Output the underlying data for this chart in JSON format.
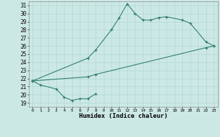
{
  "bg_color": "#cce8e5",
  "grid_color": "#b0d8d4",
  "line_color": "#2e7d6e",
  "xlabel": "Humidex (Indice chaleur)",
  "xlim": [
    -0.5,
    23.5
  ],
  "ylim": [
    18.5,
    31.5
  ],
  "xticks": [
    0,
    1,
    2,
    3,
    4,
    5,
    6,
    7,
    8,
    9,
    10,
    11,
    12,
    13,
    14,
    15,
    16,
    17,
    18,
    19,
    20,
    21,
    22,
    23
  ],
  "yticks": [
    19,
    20,
    21,
    22,
    23,
    24,
    25,
    26,
    27,
    28,
    29,
    30,
    31
  ],
  "curve1_x": [
    0,
    1,
    3,
    4,
    5,
    6,
    7,
    8
  ],
  "curve1_y": [
    21.7,
    21.2,
    20.7,
    19.7,
    19.3,
    19.5,
    19.5,
    20.1
  ],
  "curve2_x": [
    0,
    7,
    8,
    10,
    11,
    12,
    13,
    14,
    15,
    16,
    17,
    19,
    20,
    22,
    23
  ],
  "curve2_y": [
    21.7,
    24.5,
    25.5,
    28.0,
    29.5,
    31.2,
    30.0,
    29.2,
    29.2,
    29.5,
    29.6,
    29.2,
    28.8,
    26.5,
    26.0
  ],
  "curve3_x": [
    0,
    7,
    8,
    22,
    23
  ],
  "curve3_y": [
    21.7,
    22.2,
    22.5,
    25.8,
    26.0
  ]
}
